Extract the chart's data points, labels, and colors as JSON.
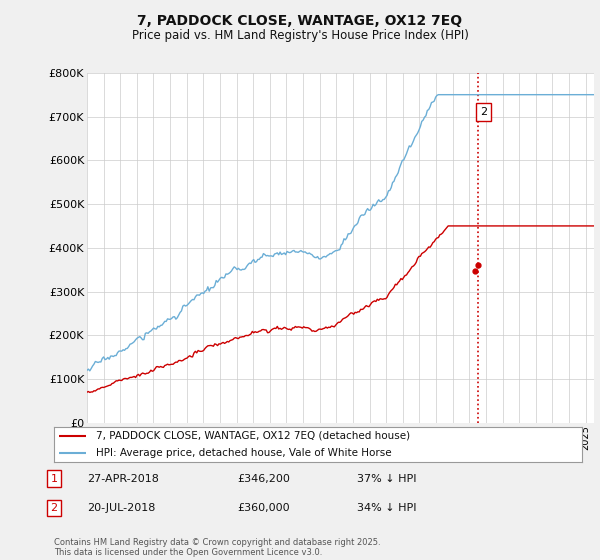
{
  "title": "7, PADDOCK CLOSE, WANTAGE, OX12 7EQ",
  "subtitle": "Price paid vs. HM Land Registry's House Price Index (HPI)",
  "ylim": [
    0,
    800000
  ],
  "yticks": [
    0,
    100000,
    200000,
    300000,
    400000,
    500000,
    600000,
    700000,
    800000
  ],
  "ytick_labels": [
    "£0",
    "£100K",
    "£200K",
    "£300K",
    "£400K",
    "£500K",
    "£600K",
    "£700K",
    "£800K"
  ],
  "hpi_color": "#6baed6",
  "price_color": "#cc0000",
  "vline_color": "#cc0000",
  "annotation1_date": "27-APR-2018",
  "annotation1_price": "£346,200",
  "annotation1_hpi": "37% ↓ HPI",
  "annotation2_date": "20-JUL-2018",
  "annotation2_price": "£360,000",
  "annotation2_hpi": "34% ↓ HPI",
  "legend_line1": "7, PADDOCK CLOSE, WANTAGE, OX12 7EQ (detached house)",
  "legend_line2": "HPI: Average price, detached house, Vale of White Horse",
  "footer": "Contains HM Land Registry data © Crown copyright and database right 2025.\nThis data is licensed under the Open Government Licence v3.0.",
  "background_color": "#f0f0f0",
  "plot_bg_color": "#ffffff",
  "grid_color": "#cccccc",
  "xlim_start": 1995,
  "xlim_end": 2025.5,
  "vline_x": 2018.55
}
